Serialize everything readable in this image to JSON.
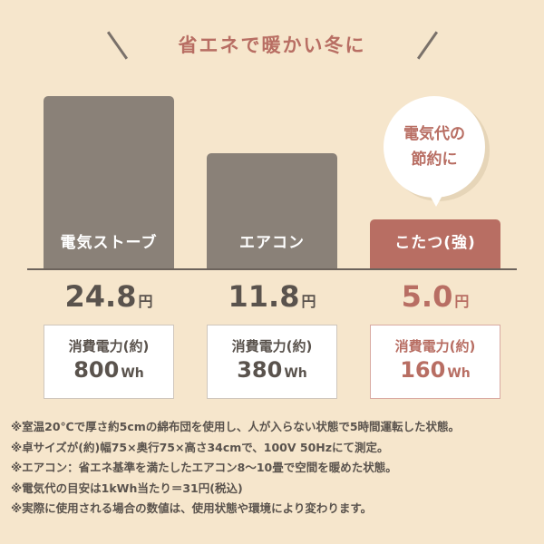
{
  "title": "省エネで暖かい冬に",
  "bubble": {
    "line1": "電気代の",
    "line2": "節約に"
  },
  "colors": {
    "background": "#f6e6cc",
    "bar": "#8a8178",
    "accent": "#b86e63",
    "text": "#5a534d"
  },
  "chart_data": {
    "type": "bar",
    "title": "省エネで暖かい冬に",
    "categories": [
      "電気ストーブ",
      "エアコン",
      "こたつ(強)"
    ],
    "values": [
      24.8,
      11.8,
      5.0
    ],
    "value_labels": [
      "24.8",
      "11.8",
      "5.0"
    ],
    "unit": "円",
    "highlight": "こたつ(強)",
    "power": {
      "label": "消費電力(約)",
      "values": [
        "800",
        "380",
        "160"
      ],
      "unit": "Wh"
    }
  },
  "notes": [
    "※室温20℃で厚さ約5cmの綿布団を使用し、人が入らない状態で5時間運転した状態。",
    "※卓サイズが(約)幅75×奥行75×高さ34cmで、100V 50Hzにて測定。",
    "※エアコン：省エネ基準を満たしたエアコン8〜10畳で空間を暖めた状態。",
    "※電気代の目安は1kWh当たり＝31円(税込)",
    "※実際に使用される場合の数値は、使用状態や環境により変わります。"
  ]
}
